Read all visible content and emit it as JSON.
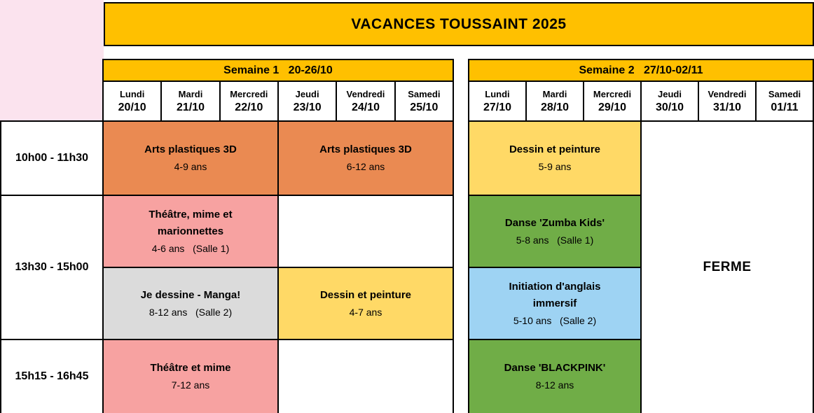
{
  "banner": {
    "title": "VACANCES TOUSSAINT 2025"
  },
  "colors": {
    "banner_bg": "#FFC000",
    "header_bg": "#FFC000",
    "corner_bg": "#FBE3EE",
    "border": "#000000"
  },
  "time_column": {
    "slots": [
      "10h00 - 11h30",
      "13h30 - 15h00",
      "15h15 - 16h45"
    ]
  },
  "weeks": [
    {
      "header": "Semaine 1   20-26/10",
      "days": [
        {
          "name": "Lundi",
          "date": "20/10"
        },
        {
          "name": "Mardi",
          "date": "21/10"
        },
        {
          "name": "Mercredi",
          "date": "22/10"
        },
        {
          "name": "Jeudi",
          "date": "23/10"
        },
        {
          "name": "Vendredi",
          "date": "24/10"
        },
        {
          "name": "Samedi",
          "date": "25/10"
        }
      ]
    },
    {
      "header": "Semaine 2   27/10-02/11",
      "days": [
        {
          "name": "Lundi",
          "date": "27/10"
        },
        {
          "name": "Mardi",
          "date": "28/10"
        },
        {
          "name": "Mercredi",
          "date": "29/10"
        },
        {
          "name": "Jeudi",
          "date": "30/10"
        },
        {
          "name": "Vendredi",
          "date": "31/10"
        },
        {
          "name": "Samedi",
          "date": "01/11"
        }
      ]
    }
  ],
  "activities": {
    "w1_morning_mon_wed": {
      "title": "Arts plastiques 3D",
      "details": "4-9 ans",
      "color": "#EA8A52"
    },
    "w1_morning_thu_sat": {
      "title": "Arts plastiques 3D",
      "details": "6-12 ans",
      "color": "#EA8A52"
    },
    "w1_aft1_mon_wed": {
      "title": "Théâtre, mime et",
      "title2": "marionnettes",
      "details": "4-6 ans   (Salle 1)",
      "color": "#F7A2A1"
    },
    "w1_aft2_mon_wed": {
      "title": "Je dessine - Manga!",
      "details": "8-12 ans   (Salle 2)",
      "color": "#DBDBDB"
    },
    "w1_aft2_thu_sat": {
      "title": "Dessin et peinture",
      "details": "4-7 ans",
      "color": "#FFD966"
    },
    "w1_late_mon_wed": {
      "title": "Théâtre et mime",
      "details": "7-12 ans",
      "color": "#F7A2A1"
    },
    "w2_morning_mon_wed": {
      "title": "Dessin et peinture",
      "details": "5-9 ans",
      "color": "#FFD966"
    },
    "w2_aft1_mon_wed": {
      "title": "Danse 'Zumba Kids'",
      "details": "5-8 ans   (Salle 1)",
      "color": "#70AD47"
    },
    "w2_aft2_mon_wed": {
      "title": "Initiation d'anglais",
      "title2": "immersif",
      "details": "5-10 ans   (Salle 2)",
      "color": "#9ED3F3"
    },
    "w2_late_mon_wed": {
      "title": "Danse 'BLACKPINK'",
      "details": "8-12 ans",
      "color": "#70AD47"
    },
    "w2_closed_thu_sat": {
      "title": "FERME",
      "color": "#FFFFFF"
    }
  }
}
